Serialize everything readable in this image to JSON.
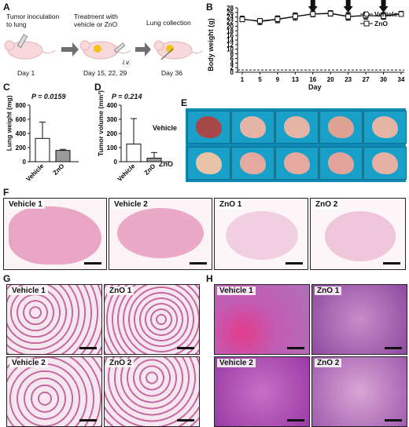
{
  "panels": {
    "A": "A",
    "B": "B",
    "C": "C",
    "D": "D",
    "E": "E",
    "F": "F",
    "G": "G",
    "H": "H"
  },
  "panelA": {
    "steps": [
      {
        "title": "Tumor inoculation\nto lung",
        "day": "Day 1"
      },
      {
        "title": "Treatment with\nvehicle or ZnO",
        "day": "Day 15, 22, 29",
        "route": "i.v."
      },
      {
        "title": "Lung collection",
        "day": "Day 36"
      }
    ]
  },
  "panelB": {
    "chart_data": {
      "type": "line",
      "ylabel": "Body weight (g)",
      "xlabel": "Day",
      "x": [
        1,
        5,
        9,
        13,
        16,
        20,
        23,
        27,
        30,
        34
      ],
      "ylim": [
        0,
        28
      ],
      "yticks": [
        0,
        2,
        4,
        6,
        8,
        10,
        12,
        14,
        16,
        18,
        20,
        22,
        24,
        26,
        28
      ],
      "dashed_y": 1,
      "treatment_days": [
        16,
        23,
        30
      ],
      "series": [
        {
          "name": "Vehicle",
          "marker": "circle",
          "values": [
            23.2,
            22.0,
            23.0,
            24.2,
            25.4,
            25.6,
            24.3,
            24.6,
            24.5,
            25.5
          ],
          "err": [
            1.2,
            1.3,
            1.5,
            1.6,
            1.3,
            1.2,
            1.7,
            1.6,
            1.5,
            1.0
          ]
        },
        {
          "name": "ZnO",
          "marker": "square",
          "values": [
            23.0,
            22.3,
            23.1,
            24.3,
            25.3,
            25.5,
            24.2,
            24.7,
            24.4,
            25.3
          ],
          "err": [
            1.0,
            1.0,
            1.2,
            1.2,
            1.0,
            1.0,
            1.4,
            1.2,
            1.2,
            0.8
          ]
        }
      ],
      "legend": "top-right"
    }
  },
  "panelC": {
    "chart_data": {
      "type": "bar",
      "ylabel": "Lung weight (mg)",
      "categories": [
        "Vehicle",
        "ZnO"
      ],
      "values": [
        330,
        160
      ],
      "err": [
        230,
        15
      ],
      "ylim": [
        0,
        800
      ],
      "yticks": [
        0,
        200,
        400,
        600,
        800
      ],
      "annotation": "P = 0.0159"
    }
  },
  "panelD": {
    "chart_data": {
      "type": "bar",
      "ylabel": "Tumor volume (mm³)",
      "categories": [
        "Vehicle",
        "ZnO"
      ],
      "values": [
        125,
        25
      ],
      "err": [
        180,
        40
      ],
      "ylim": [
        0,
        400
      ],
      "yticks": [
        0,
        100,
        200,
        300,
        400
      ],
      "annotation": "P = 0.214"
    }
  },
  "panelE": {
    "rows": [
      "Vehicle",
      "ZnO"
    ]
  },
  "panelF": {
    "labels": [
      "Vehicle 1",
      "Vehicle 2",
      "ZnO 1",
      "ZnO 2"
    ]
  },
  "panelG": {
    "labels": [
      "Vehicle 1",
      "ZnO 1",
      "Vehicle 2",
      "ZnO 2"
    ]
  },
  "panelH": {
    "labels": [
      "Vehicle 1",
      "ZnO 1",
      "Vehicle 2",
      "ZnO 2"
    ]
  }
}
